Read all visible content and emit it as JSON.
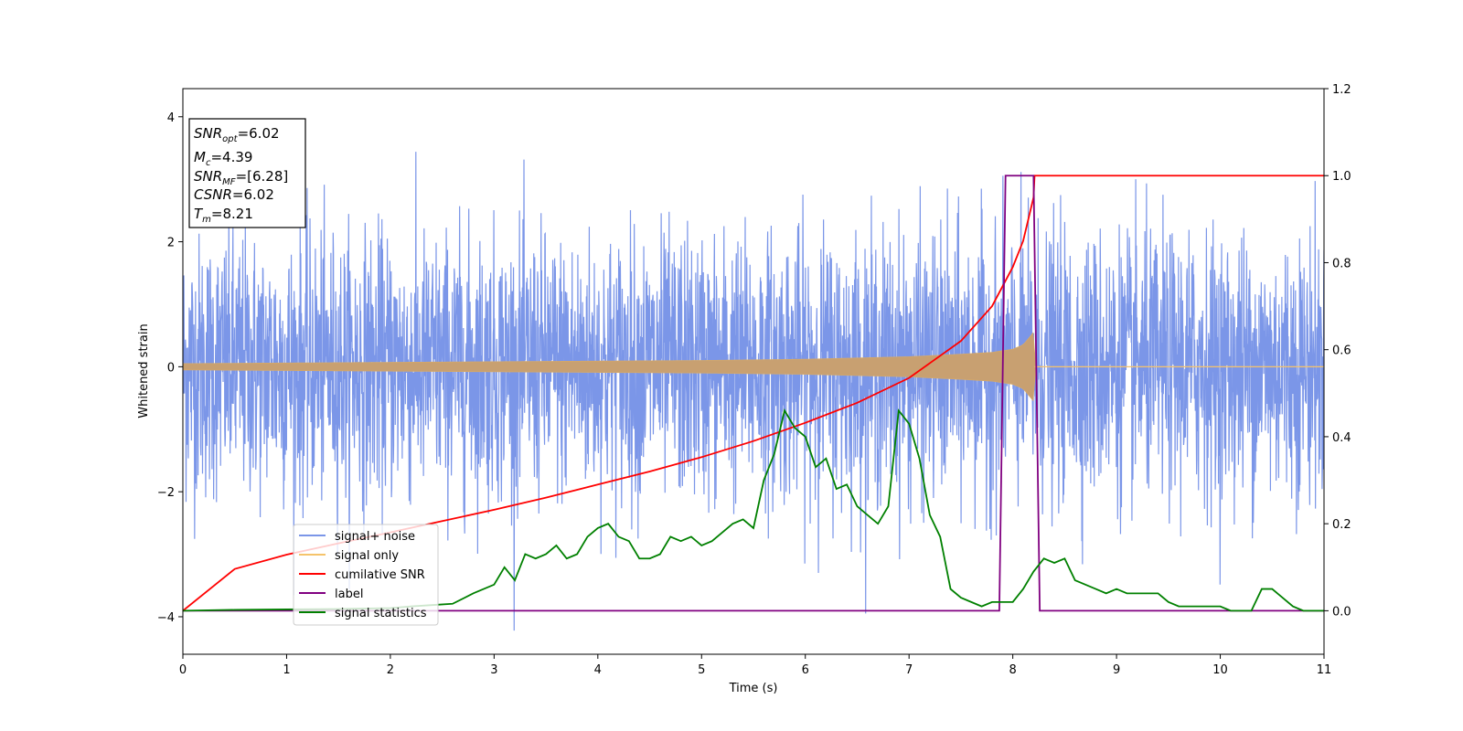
{
  "chart_data": {
    "type": "line",
    "xlabel": "Time (s)",
    "ylabel": "Whitened strain",
    "xlim": [
      0,
      11
    ],
    "ylim": [
      -4.6,
      4.45
    ],
    "y2lim": [
      -0.1,
      1.2
    ],
    "x_ticks": [
      "0",
      "1",
      "2",
      "3",
      "4",
      "5",
      "6",
      "7",
      "8",
      "9",
      "10",
      "11"
    ],
    "y_ticks": [
      "4",
      "2",
      "0",
      "−2",
      "−4"
    ],
    "y_tick_values": [
      4,
      2,
      0,
      -2,
      -4
    ],
    "y2_ticks": [
      "1.2",
      "1.0",
      "0.8",
      "0.6",
      "0.4",
      "0.2",
      "0.0"
    ],
    "y2_tick_values": [
      1.2,
      1.0,
      0.8,
      0.6,
      0.4,
      0.2,
      0.0
    ],
    "legend_placement": "lower-left",
    "info_box": {
      "lines": [
        {
          "main": "SNR",
          "sub": "opt",
          "rest": "=6.02"
        },
        {
          "main": "M",
          "sub": "c",
          "rest": "=4.39"
        },
        {
          "main": "SNR",
          "sub": "MF",
          "rest": "=[6.28]"
        },
        {
          "main": "CSNR",
          "sub": "",
          "rest": "=6.02"
        },
        {
          "main": "T",
          "sub": "m",
          "rest": "=8.21"
        }
      ]
    },
    "series": [
      {
        "name": "signal+ noise",
        "color": "#7b96e8",
        "axis": "left",
        "noise_sigma": 1.0,
        "x_range": [
          0,
          11
        ]
      },
      {
        "name": "signal only",
        "color": "#f5c36b",
        "axis": "left",
        "envelope": {
          "x": [
            0,
            1,
            2,
            3,
            4,
            5,
            6,
            6.5,
            7,
            7.5,
            7.8,
            8.0,
            8.1,
            8.15,
            8.2,
            8.21,
            8.25,
            11
          ],
          "amp": [
            0.05,
            0.06,
            0.07,
            0.08,
            0.09,
            0.1,
            0.12,
            0.14,
            0.16,
            0.2,
            0.23,
            0.28,
            0.35,
            0.45,
            0.55,
            0.0,
            0.0,
            0.0
          ]
        }
      },
      {
        "name": "cumilative SNR",
        "color": "#ff0000",
        "axis": "right",
        "x": [
          0,
          0.5,
          1,
          1.5,
          2,
          2.5,
          3,
          3.5,
          4,
          4.5,
          5,
          5.5,
          6,
          6.5,
          7,
          7.5,
          7.8,
          8.0,
          8.1,
          8.2,
          8.21,
          9,
          10,
          11
        ],
        "values": [
          0.0,
          0.096,
          0.129,
          0.155,
          0.18,
          0.206,
          0.232,
          0.26,
          0.29,
          0.32,
          0.353,
          0.39,
          0.432,
          0.478,
          0.535,
          0.62,
          0.7,
          0.79,
          0.85,
          0.95,
          1.0,
          1.0,
          1.0,
          1.0
        ]
      },
      {
        "name": "label",
        "color": "#800080",
        "axis": "right",
        "x": [
          0,
          7.87,
          7.93,
          8.2,
          8.26,
          11
        ],
        "values": [
          0,
          0,
          1,
          1,
          0,
          0
        ]
      },
      {
        "name": "signal statistics",
        "color": "#008000",
        "axis": "right",
        "x": [
          0,
          0.5,
          1.0,
          1.5,
          2.0,
          2.2,
          2.4,
          2.6,
          2.8,
          3.0,
          3.1,
          3.2,
          3.3,
          3.4,
          3.5,
          3.6,
          3.7,
          3.8,
          3.9,
          4.0,
          4.1,
          4.2,
          4.3,
          4.4,
          4.5,
          4.6,
          4.7,
          4.8,
          4.9,
          5.0,
          5.1,
          5.2,
          5.3,
          5.4,
          5.5,
          5.6,
          5.7,
          5.8,
          5.9,
          6.0,
          6.1,
          6.2,
          6.3,
          6.4,
          6.5,
          6.6,
          6.7,
          6.8,
          6.9,
          7.0,
          7.1,
          7.2,
          7.3,
          7.4,
          7.5,
          7.6,
          7.7,
          7.8,
          7.9,
          8.0,
          8.1,
          8.2,
          8.3,
          8.4,
          8.5,
          8.6,
          8.7,
          8.8,
          8.9,
          9.0,
          9.1,
          9.2,
          9.3,
          9.4,
          9.5,
          9.6,
          9.7,
          9.8,
          9.9,
          10.0,
          10.1,
          10.2,
          10.3,
          10.4,
          10.5,
          10.6,
          10.7,
          10.8,
          10.9,
          11.0
        ],
        "values": [
          0.0,
          0.002,
          0.003,
          0.004,
          0.006,
          0.01,
          0.013,
          0.016,
          0.04,
          0.06,
          0.1,
          0.07,
          0.13,
          0.12,
          0.13,
          0.15,
          0.12,
          0.13,
          0.17,
          0.19,
          0.2,
          0.17,
          0.16,
          0.12,
          0.12,
          0.13,
          0.17,
          0.16,
          0.17,
          0.15,
          0.16,
          0.18,
          0.2,
          0.21,
          0.19,
          0.3,
          0.36,
          0.46,
          0.42,
          0.4,
          0.33,
          0.35,
          0.28,
          0.29,
          0.24,
          0.22,
          0.2,
          0.24,
          0.46,
          0.43,
          0.35,
          0.22,
          0.17,
          0.05,
          0.03,
          0.02,
          0.01,
          0.02,
          0.02,
          0.02,
          0.05,
          0.09,
          0.12,
          0.11,
          0.12,
          0.07,
          0.06,
          0.05,
          0.04,
          0.05,
          0.04,
          0.04,
          0.04,
          0.04,
          0.02,
          0.01,
          0.01,
          0.01,
          0.01,
          0.01,
          0.0,
          0.0,
          0.0,
          0.05,
          0.05,
          0.03,
          0.01,
          0.0,
          0.0,
          0.0
        ]
      }
    ]
  }
}
